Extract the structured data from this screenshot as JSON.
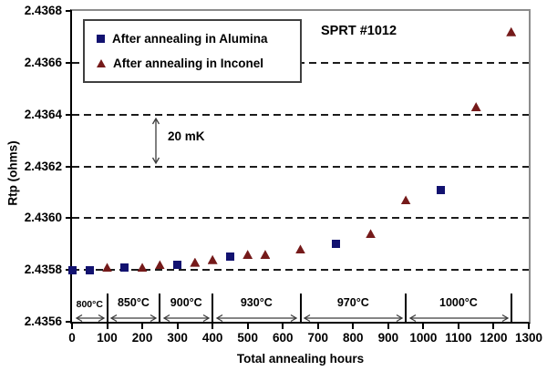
{
  "chart_data": {
    "type": "scatter",
    "xlabel": "Total annealing hours",
    "ylabel": "Rtp (ohms)",
    "xlim": [
      0,
      1300
    ],
    "ylim": [
      2.4356,
      2.4368
    ],
    "x_ticks": [
      0,
      100,
      200,
      300,
      400,
      500,
      600,
      700,
      800,
      900,
      1000,
      1100,
      1200,
      1300
    ],
    "y_ticks": [
      "2.4356",
      "2.4358",
      "2.4360",
      "2.4362",
      "2.4364",
      "2.4366",
      "2.4368"
    ],
    "gridlines": [
      2.4358,
      2.436,
      2.4362,
      2.4364,
      2.4366
    ],
    "grid_style": "horizontal dashed black lines",
    "legend_position": "top-left",
    "series": [
      {
        "name": "After annealing in Alumina",
        "marker": "square",
        "color": "#121270",
        "points": [
          [
            0,
            2.4358
          ],
          [
            50,
            2.4358
          ],
          [
            150,
            2.43581
          ],
          [
            300,
            2.43582
          ],
          [
            450,
            2.43585
          ],
          [
            750,
            2.4359
          ],
          [
            1050,
            2.43611
          ]
        ]
      },
      {
        "name": "After annealing in Inconel",
        "marker": "triangle",
        "color": "#751a1a",
        "points": [
          [
            100,
            2.43581
          ],
          [
            200,
            2.43581
          ],
          [
            250,
            2.43582
          ],
          [
            350,
            2.43583
          ],
          [
            400,
            2.43584
          ],
          [
            500,
            2.43586
          ],
          [
            550,
            2.43586
          ],
          [
            650,
            2.43588
          ],
          [
            850,
            2.43594
          ],
          [
            950,
            2.43607
          ],
          [
            1150,
            2.43643
          ],
          [
            1250,
            2.43672
          ]
        ]
      }
    ],
    "annotations": {
      "sprt": "SPRT #1012",
      "scale_bar": {
        "label": "20 mK",
        "at_hours": 240,
        "y_from": 2.4362,
        "y_to": 2.4364
      }
    },
    "temperature_zones": [
      {
        "label": "800°C",
        "from": 0,
        "to": 100
      },
      {
        "label": "850°C",
        "from": 100,
        "to": 250
      },
      {
        "label": "900°C",
        "from": 250,
        "to": 400
      },
      {
        "label": "930°C",
        "from": 400,
        "to": 650
      },
      {
        "label": "970°C",
        "from": 650,
        "to": 950
      },
      {
        "label": "1000°C",
        "from": 950,
        "to": 1250
      }
    ],
    "colors": {
      "plot_border_gray": "#8c8c8c",
      "axis_black": "#000000",
      "grid_dash": "#1c1c1c",
      "arrow_gray": "#3c3c3c"
    }
  }
}
